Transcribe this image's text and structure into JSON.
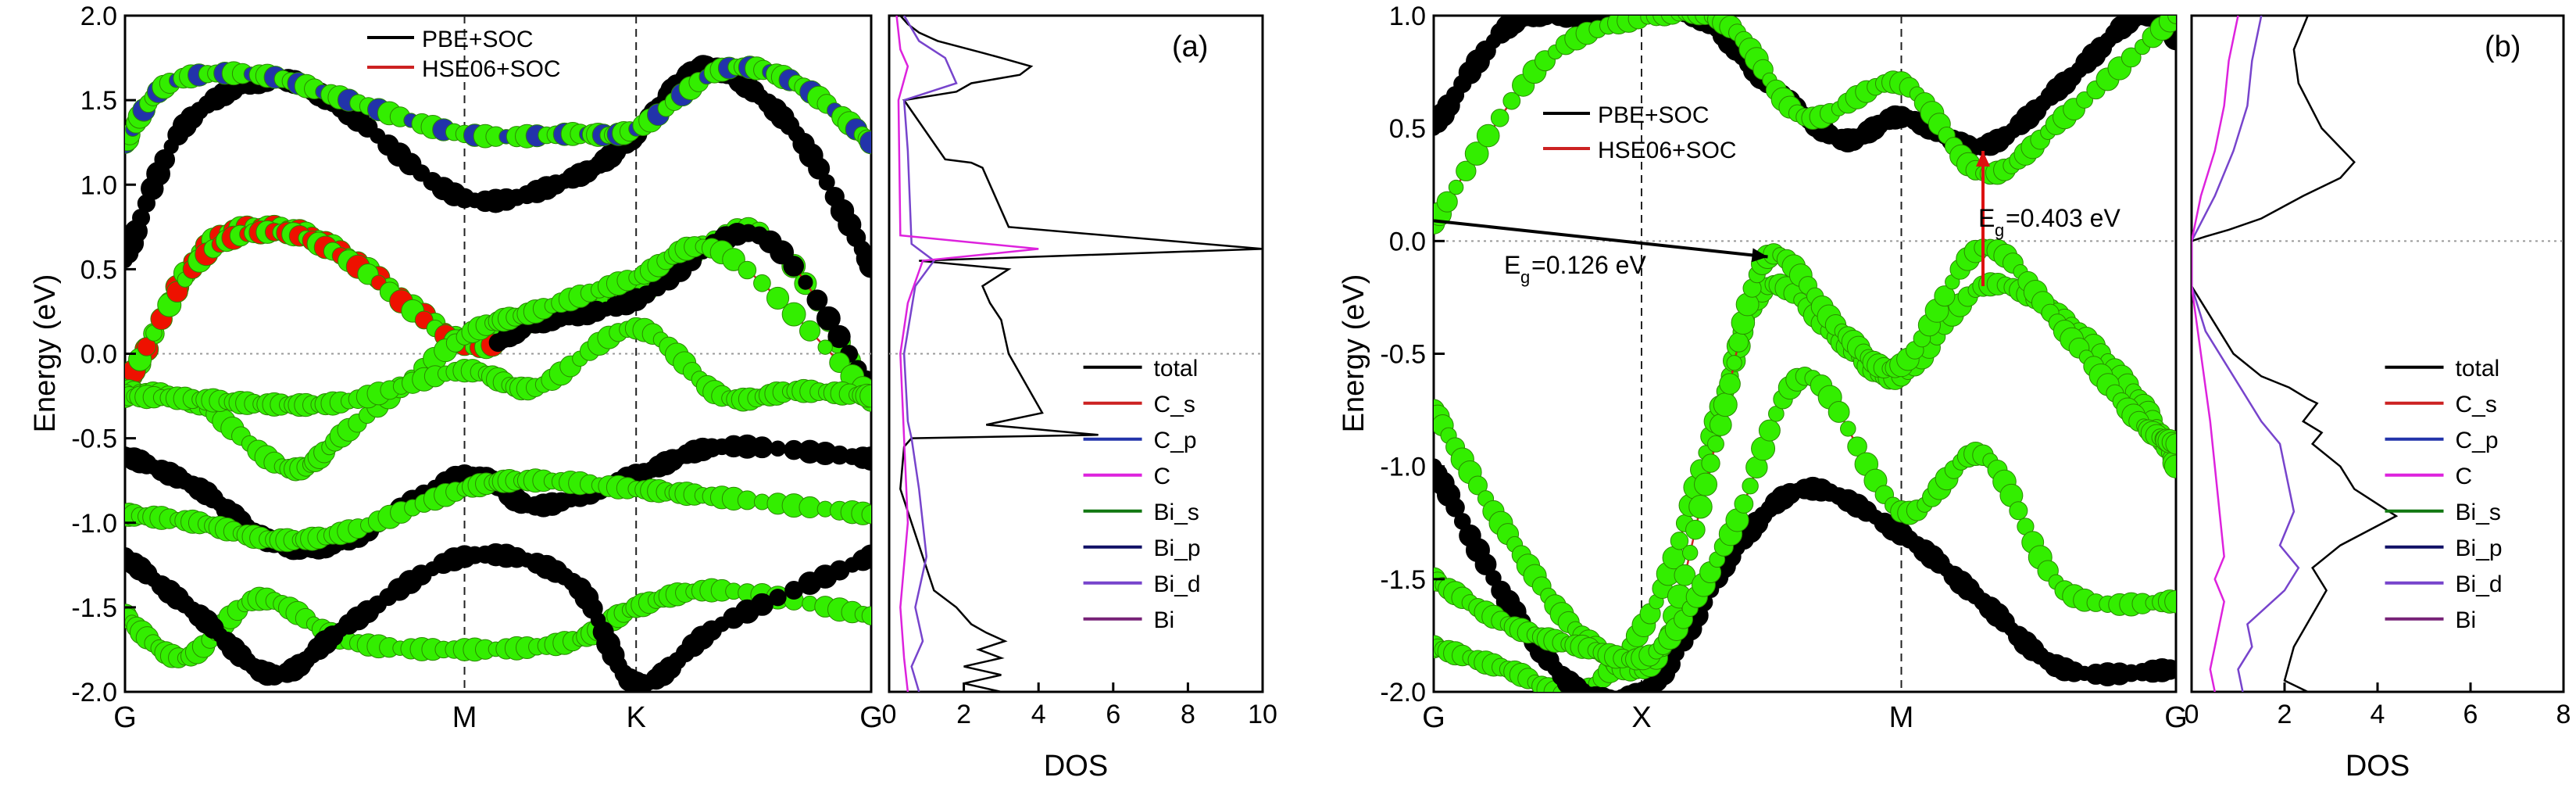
{
  "figure": {
    "ylabel": "Energy (eV)",
    "dos_label": "DOS",
    "egap_annotations": [
      {
        "prefix": "E",
        "sub": "g",
        "text": "=0.126 eV"
      },
      {
        "prefix": "E",
        "sub": "g",
        "text": "=0.403 eV"
      }
    ]
  },
  "colors": {
    "pbe": "#000000",
    "hse": "#cc2222",
    "green_orbital": "#33ee00",
    "red_orbital": "#ee1100",
    "blue_orbital": "#2233aa",
    "total": "#000000",
    "C_s": "#cc2222",
    "C_p": "#2233aa",
    "C": "#dd22dd",
    "Bi_s": "#117711",
    "Bi_p": "#111166",
    "Bi_d": "#7744cc",
    "Bi": "#772277"
  },
  "chart_data": [
    {
      "type": "line",
      "panel": "(a)",
      "subtype": "band_structure",
      "ylabel": "Energy (eV)",
      "ylim": [
        -2.0,
        2.0
      ],
      "yticks": [
        -2.0,
        -1.5,
        -1.0,
        -0.5,
        0.0,
        0.5,
        1.0,
        1.5,
        2.0
      ],
      "ytick_labels": [
        "-2.0",
        "-1.5",
        "-1.0",
        "-0.5",
        "0.0",
        "0.5",
        "1.0",
        "1.5",
        "2.0"
      ],
      "kpoints": [
        "G",
        "M",
        "K",
        "G"
      ],
      "kpoint_positions": [
        0,
        0.455,
        0.685,
        1.0
      ],
      "fermi_level": 0.0,
      "legend": [
        "PBE+SOC",
        "HSE06+SOC"
      ],
      "series": [
        {
          "style": "pbe_cb",
          "x": [
            0,
            0.08,
            0.2,
            0.3,
            0.455,
            0.6,
            0.685,
            0.75,
            0.8,
            0.9,
            1.0
          ],
          "y": [
            0.55,
            1.35,
            1.62,
            1.42,
            0.92,
            1.04,
            1.3,
            1.63,
            1.67,
            1.3,
            0.52
          ]
        },
        {
          "style": "pbe_cb",
          "x": [
            0,
            0.06,
            0.18,
            0.3,
            0.455,
            0.6,
            0.685,
            0.8,
            0.9,
            1.0
          ],
          "y": [
            1.25,
            1.6,
            1.65,
            1.5,
            1.3,
            1.3,
            1.33,
            1.68,
            1.6,
            1.25
          ]
        },
        {
          "style": "pbe_vb",
          "x": [
            0,
            0.1,
            0.2,
            0.3,
            0.455,
            0.55,
            0.685,
            0.85,
            1.0
          ],
          "y": [
            -0.25,
            0.6,
            0.75,
            0.58,
            0.08,
            0.2,
            0.35,
            0.72,
            -0.28
          ]
        },
        {
          "style": "pbe_vb",
          "x": [
            0,
            0.1,
            0.2,
            0.3,
            0.455,
            0.55,
            0.685,
            0.85,
            1.0
          ],
          "y": [
            -0.2,
            0.55,
            0.72,
            0.55,
            0.05,
            0.18,
            0.32,
            0.7,
            -0.22
          ]
        },
        {
          "style": "pbe_vb",
          "x": [
            0,
            0.1,
            0.22,
            0.3,
            0.455,
            0.55,
            0.685,
            0.8,
            1.0
          ],
          "y": [
            -0.22,
            -0.3,
            -0.68,
            -0.45,
            0.1,
            0.25,
            0.45,
            0.6,
            -0.25
          ]
        },
        {
          "style": "pbe_vb",
          "x": [
            0,
            0.1,
            0.2,
            0.3,
            0.455,
            0.55,
            0.685,
            0.8,
            0.9,
            1.0
          ],
          "y": [
            -0.25,
            -0.27,
            -0.3,
            -0.28,
            -0.1,
            -0.2,
            0.15,
            -0.25,
            -0.22,
            -0.25
          ]
        },
        {
          "style": "pbe_vb",
          "x": [
            0,
            0.1,
            0.2,
            0.3,
            0.455,
            0.55,
            0.685,
            0.8,
            1.0
          ],
          "y": [
            -0.6,
            -0.8,
            -1.12,
            -1.1,
            -0.72,
            -0.9,
            -0.72,
            -0.55,
            -0.62
          ]
        },
        {
          "style": "pbe_vb",
          "x": [
            0,
            0.1,
            0.2,
            0.3,
            0.455,
            0.55,
            0.685,
            0.8,
            1.0
          ],
          "y": [
            -0.95,
            -1.0,
            -1.1,
            -1.05,
            -0.8,
            -0.75,
            -0.8,
            -0.85,
            -0.95
          ]
        },
        {
          "style": "pbe_vb",
          "x": [
            0,
            0.08,
            0.18,
            0.3,
            0.455,
            0.6,
            0.685,
            0.8,
            1.0
          ],
          "y": [
            -1.55,
            -1.8,
            -1.45,
            -1.7,
            -1.75,
            -1.7,
            -1.5,
            -1.4,
            -1.55
          ]
        },
        {
          "style": "pbe_vb",
          "x": [
            0,
            0.1,
            0.2,
            0.3,
            0.455,
            0.6,
            0.685,
            0.8,
            1.0
          ],
          "y": [
            -1.2,
            -1.55,
            -1.9,
            -1.6,
            -1.2,
            -1.35,
            -1.95,
            -1.6,
            -1.2
          ]
        }
      ],
      "dos": {
        "xlabel": "DOS",
        "xlim": [
          0,
          10
        ],
        "xticks": [
          0,
          2,
          4,
          6,
          8,
          10
        ],
        "ylim": [
          -2.0,
          2.0
        ],
        "legend": [
          "total",
          "C_s",
          "C_p",
          "C",
          "Bi_s",
          "Bi_p",
          "Bi_d",
          "Bi"
        ],
        "series": [
          {
            "name": "total",
            "x": [
              0.3,
              0.5,
              0.8,
              1.1,
              1.3,
              2.5,
              3.0,
              3.8,
              3.5,
              2.2,
              1.8,
              0.4,
              1.5,
              2.2,
              2.5,
              3.2,
              10.0,
              0.8,
              3.2,
              2.5,
              2.7,
              3.0,
              3.2,
              4.1,
              2.6,
              5.6,
              0.6,
              0.4,
              0.3,
              0.6,
              0.9,
              1.2,
              1.8,
              2.2,
              2.6,
              3.1,
              2.4,
              3.0,
              2.0,
              3.0,
              2.0,
              3.0
            ],
            "y": [
              2.0,
              1.95,
              1.9,
              1.87,
              1.85,
              1.78,
              1.75,
              1.7,
              1.65,
              1.6,
              1.55,
              1.5,
              1.15,
              1.13,
              1.1,
              0.75,
              0.62,
              0.55,
              0.5,
              0.4,
              0.3,
              0.2,
              0.0,
              -0.35,
              -0.42,
              -0.48,
              -0.5,
              -0.55,
              -0.8,
              -1.0,
              -1.2,
              -1.4,
              -1.5,
              -1.6,
              -1.65,
              -1.7,
              -1.75,
              -1.8,
              -1.85,
              -1.9,
              -1.95,
              -2.0
            ]
          },
          {
            "name": "Bi_d",
            "x": [
              0.4,
              0.8,
              1.5,
              1.8,
              0.4,
              0.5,
              0.6,
              0.9,
              1.2,
              0.7,
              0.4,
              0.5,
              0.6,
              0.8,
              1.0,
              0.7,
              0.9,
              0.6,
              0.8
            ],
            "y": [
              2.0,
              1.85,
              1.75,
              1.6,
              1.5,
              1.2,
              0.65,
              0.6,
              0.55,
              0.4,
              0.0,
              -0.4,
              -0.5,
              -0.8,
              -1.2,
              -1.5,
              -1.7,
              -1.85,
              -2.0
            ]
          },
          {
            "name": "C",
            "x": [
              0.2,
              0.3,
              0.5,
              0.25,
              0.3,
              4.0,
              0.9,
              0.5,
              0.3,
              0.4,
              0.5,
              0.3,
              0.4,
              0.5
            ],
            "y": [
              2.0,
              1.8,
              1.7,
              1.5,
              0.7,
              0.62,
              0.55,
              0.3,
              0.0,
              -0.5,
              -1.0,
              -1.5,
              -1.8,
              -2.0
            ]
          }
        ]
      }
    },
    {
      "type": "line",
      "panel": "(b)",
      "subtype": "band_structure",
      "ylabel": "Energy (eV)",
      "ylim": [
        -2.0,
        1.0
      ],
      "yticks": [
        -2.0,
        -1.5,
        -1.0,
        -0.5,
        0.0,
        0.5,
        1.0
      ],
      "ytick_labels": [
        "-2.0",
        "-1.5",
        "-1.0",
        "-0.5",
        "0.0",
        "0.5",
        "1.0"
      ],
      "kpoints": [
        "G",
        "X",
        "M",
        "G"
      ],
      "kpoint_positions": [
        0,
        0.28,
        0.63,
        1.0
      ],
      "fermi_level": 0.0,
      "legend": [
        "PBE+SOC",
        "HSE06+SOC"
      ],
      "gaps": [
        {
          "label": "Eg=0.126 eV",
          "from": [
            0.0,
            0.09
          ],
          "to": [
            0.45,
            -0.07
          ]
        },
        {
          "label": "Eg=0.403 eV",
          "from": [
            0.74,
            -0.2
          ],
          "to": [
            0.74,
            0.4
          ]
        }
      ],
      "series": [
        {
          "style": "pbe_cb",
          "x": [
            0,
            0.1,
            0.2,
            0.35,
            0.45,
            0.55,
            0.63,
            0.74,
            0.85,
            0.95,
            1.0
          ],
          "y": [
            0.5,
            0.95,
            1.0,
            1.0,
            0.7,
            0.45,
            0.55,
            0.42,
            0.7,
            1.0,
            0.9
          ]
        },
        {
          "style": "hse_cb",
          "x": [
            0,
            0.15,
            0.3,
            0.4,
            0.5,
            0.63,
            0.74,
            0.85,
            1.0
          ],
          "y": [
            0.08,
            0.8,
            1.0,
            0.95,
            0.55,
            0.7,
            0.3,
            0.55,
            1.0
          ]
        },
        {
          "style": "pbe_vb",
          "x": [
            0,
            0.1,
            0.2,
            0.3,
            0.38,
            0.45,
            0.55,
            0.63,
            0.74,
            0.85,
            0.95,
            1.0
          ],
          "y": [
            -1.8,
            -1.9,
            -2.0,
            -1.6,
            -0.8,
            -0.2,
            -0.45,
            -0.6,
            -0.2,
            -0.35,
            -0.7,
            -1.0
          ]
        },
        {
          "style": "pbe_vb",
          "x": [
            0,
            0.1,
            0.2,
            0.3,
            0.4,
            0.5,
            0.63,
            0.74,
            0.85,
            1.0
          ],
          "y": [
            -1.0,
            -1.6,
            -2.0,
            -1.95,
            -1.4,
            -1.1,
            -1.3,
            -1.6,
            -1.9,
            -1.9
          ]
        },
        {
          "style": "hse_vb",
          "x": [
            0,
            0.1,
            0.2,
            0.3,
            0.38,
            0.45,
            0.55,
            0.63,
            0.74,
            0.85,
            0.95,
            1.0
          ],
          "y": [
            -0.75,
            -1.3,
            -1.75,
            -1.85,
            -0.9,
            -0.07,
            -0.4,
            -0.55,
            -0.03,
            -0.4,
            -0.8,
            -0.9
          ]
        },
        {
          "style": "hse_vb",
          "x": [
            0,
            0.1,
            0.2,
            0.3,
            0.4,
            0.5,
            0.63,
            0.74,
            0.85,
            1.0
          ],
          "y": [
            -1.5,
            -1.7,
            -1.8,
            -1.82,
            -1.3,
            -0.6,
            -1.2,
            -0.95,
            -1.55,
            -1.6
          ]
        }
      ],
      "dos": {
        "xlabel": "DOS",
        "xlim": [
          0,
          8
        ],
        "xticks": [
          0,
          2,
          4,
          6,
          8
        ],
        "ylim": [
          -2.0,
          1.0
        ],
        "legend": [
          "total",
          "C_s",
          "C_p",
          "C",
          "Bi_s",
          "Bi_p",
          "Bi_d",
          "Bi"
        ],
        "series": [
          {
            "name": "total",
            "x": [
              2.5,
              2.2,
              2.3,
              2.8,
              3.5,
              3.2,
              2.4,
              1.5,
              0.8,
              0.3,
              0.0,
              0.0,
              0.3,
              0.9,
              1.5,
              2.1,
              2.5,
              2.7,
              2.4,
              2.8,
              2.6,
              3.2,
              3.5,
              4.4,
              3.2,
              2.6,
              2.9,
              2.2,
              2.0,
              2.5
            ],
            "y": [
              1.0,
              0.85,
              0.7,
              0.5,
              0.35,
              0.28,
              0.2,
              0.1,
              0.05,
              0.02,
              0.0,
              -0.2,
              -0.3,
              -0.5,
              -0.6,
              -0.65,
              -0.7,
              -0.72,
              -0.8,
              -0.85,
              -0.9,
              -1.0,
              -1.1,
              -1.22,
              -1.35,
              -1.45,
              -1.55,
              -1.8,
              -1.95,
              -2.0
            ]
          },
          {
            "name": "Bi_d",
            "x": [
              1.5,
              1.3,
              1.2,
              0.9,
              0.5,
              0.0,
              0.0,
              0.3,
              0.9,
              1.5,
              1.9,
              2.2,
              1.9,
              2.3,
              2.0,
              1.2,
              1.3,
              1.0,
              1.1
            ],
            "y": [
              1.0,
              0.8,
              0.6,
              0.4,
              0.2,
              0.0,
              -0.2,
              -0.4,
              -0.6,
              -0.8,
              -0.9,
              -1.2,
              -1.35,
              -1.45,
              -1.55,
              -1.7,
              -1.8,
              -1.9,
              -2.0
            ]
          },
          {
            "name": "C",
            "x": [
              1.0,
              0.8,
              0.7,
              0.5,
              0.2,
              0.0,
              0.0,
              0.2,
              0.4,
              0.5,
              0.6,
              0.7,
              0.5,
              0.7,
              0.6,
              0.5,
              0.4,
              0.5
            ],
            "y": [
              1.0,
              0.8,
              0.6,
              0.4,
              0.2,
              0.0,
              -0.2,
              -0.5,
              -0.8,
              -1.0,
              -1.2,
              -1.4,
              -1.5,
              -1.6,
              -1.7,
              -1.8,
              -1.9,
              -2.0
            ]
          }
        ]
      }
    }
  ]
}
